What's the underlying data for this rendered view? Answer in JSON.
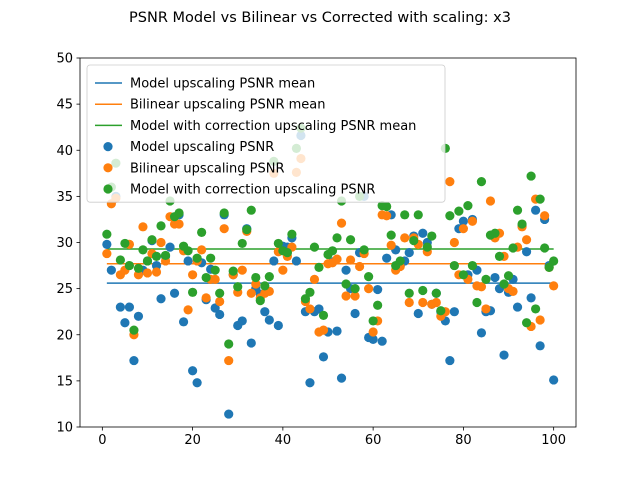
{
  "chart_data": {
    "type": "scatter",
    "title": "PSNR Model vs Bilinear vs Corrected with scaling: x3",
    "xlabel": "",
    "ylabel": "",
    "xlim": [
      -4.95,
      104.95
    ],
    "ylim": [
      10,
      50
    ],
    "x_ticks": [
      0,
      20,
      40,
      60,
      80,
      100
    ],
    "y_ticks": [
      10,
      15,
      20,
      25,
      30,
      35,
      40,
      45,
      50
    ],
    "grid": false,
    "legend_position": "upper-left",
    "mean_lines": [
      {
        "name": "Model upscaling PSNR mean",
        "color": "#1f77b4",
        "y": 25.6,
        "x_range": [
          1,
          100
        ]
      },
      {
        "name": "Bilinear upscaling PSNR mean",
        "color": "#ff7f0e",
        "y": 27.7,
        "x_range": [
          1,
          100
        ]
      },
      {
        "name": "Model with correction upscaling PSNR mean",
        "color": "#2ca02c",
        "y": 29.3,
        "x_range": [
          1,
          100
        ]
      }
    ],
    "series": [
      {
        "name": "Model upscaling PSNR",
        "color": "#1f77b4",
        "x": [
          1,
          2,
          3,
          4,
          5,
          6,
          7,
          8,
          9,
          10,
          11,
          12,
          13,
          14,
          15,
          16,
          17,
          18,
          19,
          20,
          21,
          22,
          23,
          24,
          25,
          26,
          27,
          28,
          29,
          30,
          31,
          32,
          33,
          34,
          35,
          36,
          37,
          38,
          39,
          40,
          41,
          42,
          43,
          44,
          45,
          46,
          47,
          48,
          49,
          50,
          51,
          52,
          53,
          54,
          55,
          56,
          57,
          58,
          59,
          60,
          61,
          62,
          63,
          64,
          65,
          66,
          67,
          68,
          69,
          70,
          71,
          72,
          73,
          74,
          75,
          76,
          77,
          78,
          79,
          80,
          81,
          82,
          83,
          84,
          85,
          86,
          87,
          88,
          89,
          90,
          91,
          92,
          93,
          94,
          95,
          96,
          97,
          98,
          99,
          100
        ],
        "values": [
          29.8,
          27.0,
          35.0,
          23.0,
          21.3,
          23.0,
          17.2,
          22.0,
          27.0,
          28.0,
          30.2,
          27.5,
          23.9,
          28.5,
          29.5,
          24.5,
          33.0,
          21.4,
          28.0,
          16.1,
          14.8,
          27.8,
          23.8,
          27.1,
          22.9,
          22.2,
          33.0,
          11.4,
          26.5,
          21.0,
          21.5,
          31.5,
          19.1,
          25.0,
          24.4,
          22.5,
          21.6,
          28.0,
          21.0,
          29.6,
          29.5,
          30.5,
          28.0,
          41.6,
          22.5,
          14.8,
          22.5,
          22.8,
          17.6,
          20.3,
          27.9,
          20.4,
          15.3,
          27.0,
          25.0,
          22.3,
          28.9,
          35.0,
          19.7,
          19.5,
          24.9,
          19.3,
          28.3,
          33.0,
          29.2,
          27.5,
          28.0,
          28.9,
          30.7,
          22.3,
          31.0,
          30.0,
          23.3,
          24.5,
          22.5,
          21.5,
          17.2,
          22.5,
          31.5,
          32.3,
          26.5,
          32.5,
          27.0,
          20.2,
          22.5,
          22.6,
          26.2,
          25.0,
          17.8,
          24.6,
          26.0,
          23.0,
          31.8,
          29.0,
          24.0,
          33.5,
          18.8,
          32.5,
          27.5,
          15.1
        ]
      },
      {
        "name": "Bilinear upscaling PSNR",
        "color": "#ff7f0e",
        "x": [
          1,
          2,
          3,
          4,
          5,
          6,
          7,
          8,
          9,
          10,
          11,
          12,
          13,
          14,
          15,
          16,
          17,
          18,
          19,
          20,
          21,
          22,
          23,
          24,
          25,
          26,
          27,
          28,
          29,
          30,
          31,
          32,
          33,
          34,
          35,
          36,
          37,
          38,
          39,
          40,
          41,
          42,
          43,
          44,
          45,
          46,
          47,
          48,
          49,
          50,
          51,
          52,
          53,
          54,
          55,
          56,
          57,
          58,
          59,
          60,
          61,
          62,
          63,
          64,
          65,
          66,
          67,
          68,
          69,
          70,
          71,
          72,
          73,
          74,
          75,
          76,
          77,
          78,
          79,
          80,
          81,
          82,
          83,
          84,
          85,
          86,
          87,
          88,
          89,
          90,
          91,
          92,
          93,
          94,
          95,
          96,
          97,
          98,
          99,
          100
        ],
        "values": [
          28.8,
          34.2,
          34.8,
          26.5,
          27.0,
          29.8,
          20.0,
          26.5,
          31.7,
          26.7,
          28.8,
          26.8,
          30.0,
          28.0,
          32.8,
          32.0,
          32.0,
          29.1,
          22.7,
          26.5,
          28.0,
          29.2,
          24.0,
          26.0,
          26.0,
          23.6,
          31.5,
          17.2,
          26.5,
          24.6,
          27.0,
          31.2,
          24.5,
          25.5,
          24.0,
          24.5,
          24.7,
          37.5,
          29.0,
          27.0,
          28.5,
          29.5,
          37.6,
          39.1,
          23.6,
          22.8,
          26.0,
          20.3,
          20.5,
          27.7,
          27.8,
          28.2,
          32.1,
          24.2,
          28.1,
          24.2,
          27.4,
          28.8,
          25.0,
          20.3,
          21.5,
          33.0,
          32.9,
          29.7,
          27.0,
          27.4,
          30.5,
          23.5,
          30.5,
          29.8,
          23.5,
          29.0,
          23.3,
          23.5,
          22.0,
          22.5,
          36.6,
          30.0,
          26.5,
          31.5,
          26.0,
          32.3,
          25.3,
          25.2,
          22.8,
          34.5,
          30.5,
          31.0,
          28.5,
          25.0,
          24.7,
          29.5,
          31.7,
          30.3,
          20.9,
          34.7,
          21.6,
          32.9,
          27.3,
          25.3
        ]
      },
      {
        "name": "Model with correction upscaling PSNR",
        "color": "#2ca02c",
        "x": [
          1,
          2,
          3,
          4,
          5,
          6,
          7,
          8,
          9,
          10,
          11,
          12,
          13,
          14,
          15,
          16,
          17,
          18,
          19,
          20,
          21,
          22,
          23,
          24,
          25,
          26,
          27,
          28,
          29,
          30,
          31,
          32,
          33,
          34,
          35,
          36,
          37,
          38,
          39,
          40,
          41,
          42,
          43,
          44,
          45,
          46,
          47,
          48,
          49,
          50,
          51,
          52,
          53,
          54,
          55,
          56,
          57,
          58,
          59,
          60,
          61,
          62,
          63,
          64,
          65,
          66,
          67,
          68,
          69,
          70,
          71,
          72,
          73,
          74,
          75,
          76,
          77,
          78,
          79,
          80,
          81,
          82,
          83,
          84,
          85,
          86,
          87,
          88,
          89,
          90,
          91,
          92,
          93,
          94,
          95,
          96,
          97,
          98,
          99,
          100
        ],
        "values": [
          30.9,
          36.0,
          38.6,
          28.1,
          29.9,
          27.5,
          20.5,
          27.2,
          29.2,
          28.0,
          30.3,
          28.5,
          31.8,
          28.6,
          34.5,
          32.8,
          33.2,
          29.6,
          29.1,
          24.6,
          28.3,
          31.1,
          26.2,
          28.3,
          27.0,
          24.5,
          33.2,
          19.0,
          26.9,
          25.2,
          29.9,
          31.4,
          33.5,
          26.2,
          23.7,
          25.3,
          26.3,
          38.8,
          29.9,
          29.1,
          28.9,
          30.9,
          40.2,
          42.4,
          23.9,
          24.6,
          29.5,
          27.3,
          22.1,
          28.7,
          29.1,
          30.5,
          34.5,
          25.5,
          30.3,
          25.0,
          35.0,
          29.2,
          26.3,
          21.5,
          23.2,
          34.0,
          33.9,
          30.8,
          27.5,
          28.0,
          33.0,
          24.5,
          30.2,
          33.0,
          24.8,
          29.5,
          30.7,
          24.5,
          22.6,
          40.2,
          32.9,
          27.5,
          33.4,
          26.5,
          34.0,
          27.5,
          23.5,
          36.6,
          26.0,
          30.8,
          31.0,
          28.5,
          25.5,
          26.4,
          29.4,
          33.5,
          32.0,
          21.3,
          37.2,
          22.8,
          34.7,
          29.4,
          27.3,
          28.0
        ]
      }
    ]
  }
}
